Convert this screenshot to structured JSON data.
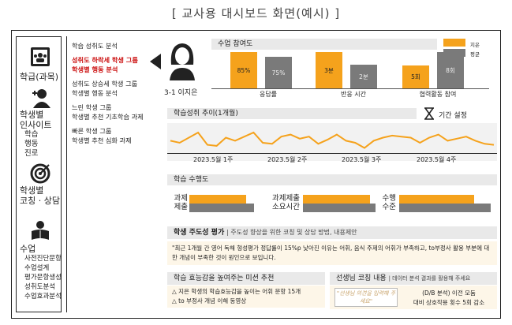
{
  "page_title": "[ 교사용 대시보드 화면(예시) ]",
  "nav": {
    "items": [
      {
        "label": "학급(과목)",
        "icon": "class-board-icon"
      },
      {
        "label": "학생별\n인사이트",
        "icon": "student-icon",
        "subs": [
          "학습",
          "행동",
          "진로"
        ]
      },
      {
        "label": "학생별\n코칭 · 상담",
        "icon": "target-icon"
      },
      {
        "label": "수업",
        "icon": "reader-icon",
        "subs": [
          "사전진단문항",
          "수업설계",
          "평가문항생성",
          "성취도분석",
          "수업효과분석"
        ]
      }
    ]
  },
  "menu": {
    "groups": [
      {
        "lines": [
          "학습 성취도 분석"
        ],
        "highlight": false
      },
      {
        "lines": [
          "성취도 하락세 학생 그룹",
          "학생별 행동 분석"
        ],
        "highlight": true
      },
      {
        "lines": [
          "성취도 상승세 학생 그룹",
          "학생별 행동 분석"
        ],
        "highlight": false
      },
      {
        "lines": [
          "느린 학생 그룹",
          "학생별 추천 기초학습 과제"
        ],
        "highlight": false
      },
      {
        "lines": [
          "빠른 학생 그룹",
          "학생별 추천 심화 과제"
        ],
        "highlight": false
      }
    ]
  },
  "student": {
    "name": "3-1 이지은"
  },
  "participation": {
    "title": "수업 참여도",
    "legend": {
      "student": "지은",
      "avg": "평균"
    },
    "groups": [
      {
        "label": "응답률",
        "student": "85%",
        "avg": "75%",
        "student_value": 85,
        "avg_value": 75
      },
      {
        "label": "반응 시간",
        "student": "3분",
        "avg": "2분",
        "student_value": 3,
        "avg_value": 2
      },
      {
        "label": "협력활동 참여",
        "student": "5회",
        "avg": "8회",
        "student_value": 5,
        "avg_value": 8
      }
    ]
  },
  "trend": {
    "title": "학습성취 추이(1개월)",
    "period_label": "기간 설정",
    "weeks": [
      "2023.5월 1주",
      "2023.5월 2주",
      "2023.5월 3주",
      "2023.5월 4주"
    ],
    "values": [
      52,
      50,
      55,
      60,
      48,
      47,
      55,
      52,
      56,
      60,
      50,
      49,
      56,
      58,
      54,
      56,
      49,
      53,
      58,
      52,
      50,
      45,
      52,
      55,
      57,
      56,
      55,
      50,
      55,
      58,
      52,
      54,
      56,
      52,
      49,
      48
    ]
  },
  "performance": {
    "title": "학습 수행도",
    "rows": [
      {
        "label_top": "과제",
        "label_bottom": "제출",
        "value": 0.88
      },
      {
        "label_top": "과제제출",
        "label_bottom": "소요시간",
        "value": 0.92
      },
      {
        "label_top": "수행",
        "label_bottom": "수준",
        "value": 0.82
      }
    ]
  },
  "self_directed": {
    "title": "학생 주도성 평가",
    "subtitle": "주도성 향상을 위한 코칭 및 상담 방법, 내용제안",
    "text": "\"최근 1개월 간 영어 독해 형성평가 정답률이 15%p 낮아진 이유는 어휘, 음식 주제의 어휘가 부족하고, to부정사 활용 부분에 대한 개념이 부족한 것이 원인으로 보입니다."
  },
  "mission": {
    "title": "학습 효능감을 높여주는 미션 추천",
    "items": [
      "△ 지은 학생의 학습효능감을 높이는 어휘 문항 15개",
      "△ to 부정사 개념 이해 동영상"
    ]
  },
  "coaching": {
    "title": "선생님 코칭 내용",
    "subtitle": "데이터 분석 결과를 활용해 주세요",
    "placeholder": "\"선생님 의견을 입력해 주세요\"",
    "note_line1": "(D/B 분석) 이전 모둠",
    "note_line2": "대비 상호작용 횟수 5회 감소"
  },
  "colors": {
    "accent": "#f5a21c",
    "avg": "#7a7a7a",
    "highlight": "#c11111",
    "panel": "#e9e9e9",
    "note_bg": "#fdf6e8"
  }
}
